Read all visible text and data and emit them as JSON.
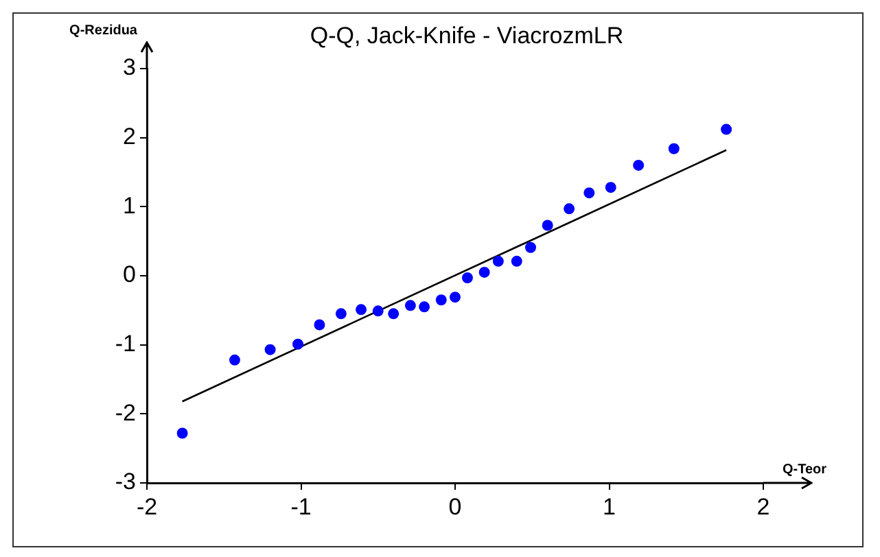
{
  "chart_data": {
    "type": "scatter",
    "title": "Q-Q, Jack-Knife - ViacrozmLR",
    "xlabel": "Q-Teor",
    "ylabel": "Q-Rezidua",
    "xlim": [
      -2,
      2
    ],
    "xticks": [
      -2,
      -1,
      0,
      1,
      2
    ],
    "ylim": [
      -3,
      3
    ],
    "yticks": [
      -3,
      -2,
      -1,
      0,
      1,
      2,
      3
    ],
    "grid": false,
    "legend": false,
    "marker": "circle",
    "series": [
      {
        "color": "#0000ff",
        "x": [
          -1.77,
          -1.43,
          -1.2,
          -1.02,
          -0.88,
          -0.74,
          -0.61,
          -0.5,
          -0.4,
          -0.29,
          -0.2,
          -0.09,
          0,
          0.08,
          0.19,
          0.28,
          0.4,
          0.49,
          0.6,
          0.74,
          0.87,
          1.01,
          1.19,
          1.42,
          1.76
        ],
        "values": [
          -2.28,
          -1.22,
          -1.07,
          -0.99,
          -0.71,
          -0.55,
          -0.49,
          -0.51,
          -0.55,
          -0.43,
          -0.45,
          -0.35,
          -0.31,
          -0.03,
          0.05,
          0.21,
          0.21,
          0.41,
          0.73,
          0.97,
          1.2,
          1.28,
          1.6,
          1.84,
          2.12
        ]
      },
      {
        "type": "line",
        "marker": "none",
        "color": "#000000",
        "x": [
          -1.77,
          1.76
        ],
        "values": [
          -1.82,
          1.82
        ]
      }
    ]
  }
}
